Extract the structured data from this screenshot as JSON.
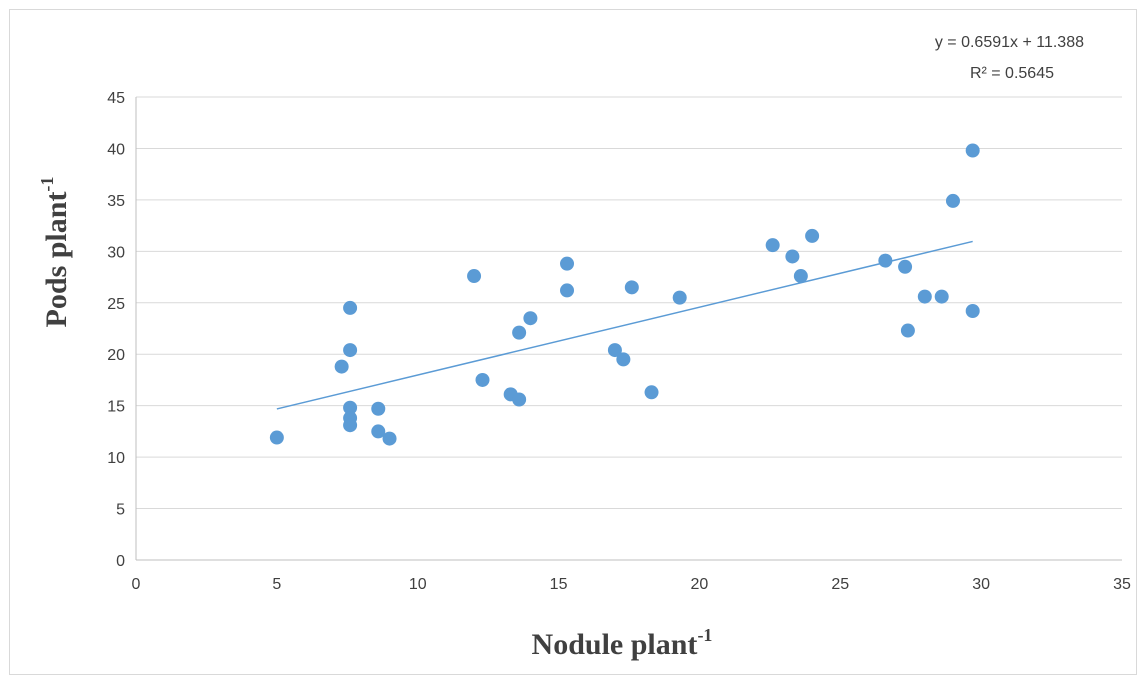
{
  "chart_data": {
    "type": "scatter",
    "title": "",
    "xlabel": {
      "base": "Nodule plant",
      "superscript": "-1"
    },
    "ylabel": {
      "base": "Pods plant",
      "superscript": "-1"
    },
    "xlim": [
      0,
      35
    ],
    "ylim": [
      0,
      45
    ],
    "x_ticks": [
      0,
      5,
      10,
      15,
      20,
      25,
      30,
      35
    ],
    "y_ticks": [
      0,
      5,
      10,
      15,
      20,
      25,
      30,
      35,
      40,
      45
    ],
    "grid": {
      "horizontal": true,
      "vertical": false
    },
    "legend": "none",
    "marker_color": "#5b9bd5",
    "trendline_color": "#5b9bd5",
    "points": [
      {
        "x": 5.0,
        "y": 11.9
      },
      {
        "x": 7.3,
        "y": 18.8
      },
      {
        "x": 7.6,
        "y": 24.5
      },
      {
        "x": 7.6,
        "y": 20.4
      },
      {
        "x": 7.6,
        "y": 14.8
      },
      {
        "x": 7.6,
        "y": 13.8
      },
      {
        "x": 7.6,
        "y": 13.1
      },
      {
        "x": 8.6,
        "y": 14.7
      },
      {
        "x": 8.6,
        "y": 12.5
      },
      {
        "x": 9.0,
        "y": 11.8
      },
      {
        "x": 12.0,
        "y": 27.6
      },
      {
        "x": 12.3,
        "y": 17.5
      },
      {
        "x": 13.3,
        "y": 16.1
      },
      {
        "x": 13.6,
        "y": 15.6
      },
      {
        "x": 13.6,
        "y": 22.1
      },
      {
        "x": 14.0,
        "y": 23.5
      },
      {
        "x": 15.3,
        "y": 28.8
      },
      {
        "x": 15.3,
        "y": 26.2
      },
      {
        "x": 17.0,
        "y": 20.4
      },
      {
        "x": 17.3,
        "y": 19.5
      },
      {
        "x": 17.6,
        "y": 26.5
      },
      {
        "x": 18.3,
        "y": 16.3
      },
      {
        "x": 19.3,
        "y": 25.5
      },
      {
        "x": 22.6,
        "y": 30.6
      },
      {
        "x": 23.3,
        "y": 29.5
      },
      {
        "x": 23.6,
        "y": 27.6
      },
      {
        "x": 24.0,
        "y": 31.5
      },
      {
        "x": 26.6,
        "y": 29.1
      },
      {
        "x": 27.3,
        "y": 28.5
      },
      {
        "x": 27.4,
        "y": 22.3
      },
      {
        "x": 28.0,
        "y": 25.6
      },
      {
        "x": 28.6,
        "y": 25.6
      },
      {
        "x": 29.0,
        "y": 34.9
      },
      {
        "x": 29.7,
        "y": 39.8
      },
      {
        "x": 29.7,
        "y": 24.2
      }
    ],
    "trendline": {
      "slope": 0.6591,
      "intercept": 11.388,
      "x_range": [
        5.0,
        29.7
      ],
      "equation_text": "y = 0.6591x + 11.388",
      "r2_text": "R² = 0.5645"
    }
  }
}
